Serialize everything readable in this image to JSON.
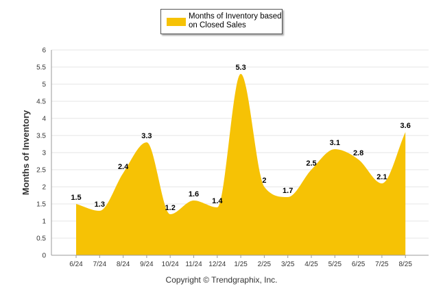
{
  "legend": {
    "label": "Months of Inventory based\non Closed Sales"
  },
  "footer": {
    "copyright": "Copyright © Trendgraphix, Inc."
  },
  "colors": {
    "area": "#f6c205",
    "grid": "#e6e6e6",
    "axis": "#9a9a9a",
    "text": "#333333"
  },
  "chart_data": {
    "type": "area",
    "title": "",
    "xlabel": "",
    "ylabel": "Months of Inventory",
    "categories": [
      "6/24",
      "7/24",
      "8/24",
      "9/24",
      "10/24",
      "11/24",
      "12/24",
      "1/25",
      "2/25",
      "3/25",
      "4/25",
      "5/25",
      "6/25",
      "7/25",
      "8/25"
    ],
    "series": [
      {
        "name": "Months of Inventory based on Closed Sales",
        "values": [
          1.5,
          1.3,
          2.4,
          3.3,
          1.2,
          1.6,
          1.4,
          5.3,
          2,
          1.7,
          2.5,
          3.1,
          2.8,
          2.1,
          3.6
        ]
      }
    ],
    "data_labels": [
      "1.5",
      "1.3",
      "2.4",
      "3.3",
      "1.2",
      "1.6",
      "1.4",
      "5.3",
      "2",
      "1.7",
      "2.5",
      "3.1",
      "2.8",
      "2.1",
      "3.6"
    ],
    "ylim": [
      0,
      6
    ],
    "yticks": [
      "0",
      "0.5",
      "1",
      "1.5",
      "2",
      "2.5",
      "3",
      "3.5",
      "4",
      "4.5",
      "5",
      "5.5",
      "6"
    ],
    "grid": true,
    "legend_position": "top-center"
  }
}
